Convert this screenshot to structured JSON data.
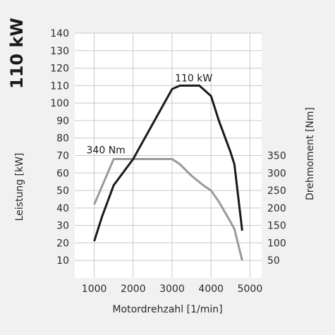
{
  "chart_data": {
    "type": "line",
    "title": "110 kW",
    "xlabel": "Motordrehzahl [1/min]",
    "ylabel_left": "Leistung [kW]",
    "ylabel_right": "Drehmoment [Nm]",
    "xlim": [
      500,
      5300
    ],
    "ylim_left": [
      0,
      140
    ],
    "ylim_right": [
      0,
      350
    ],
    "x_ticks": [
      1000,
      2000,
      3000,
      4000,
      5000
    ],
    "y_ticks_left": [
      10,
      20,
      30,
      40,
      50,
      60,
      70,
      80,
      90,
      100,
      110,
      120,
      130,
      140
    ],
    "y_ticks_right": [
      50,
      100,
      150,
      200,
      250,
      300,
      350
    ],
    "grid": true,
    "colors": {
      "power": "#1a1a1a",
      "torque": "#9a9a9a",
      "plot_bg": "#ffffff",
      "grid": "#c9c9c9"
    },
    "annotations": [
      {
        "text": "110 kW",
        "series": "power"
      },
      {
        "text": "340 Nm",
        "series": "torque"
      }
    ],
    "series": [
      {
        "axis": "left",
        "x": [
          1000,
          1200,
          1500,
          2000,
          2500,
          3000,
          3200,
          3500,
          3700,
          3800,
          4000,
          4200,
          4500,
          4600,
          4700,
          4800
        ],
        "y": [
          21,
          35,
          53,
          68,
          88,
          108,
          110,
          110,
          110,
          108,
          104,
          90,
          72,
          65,
          46,
          27
        ]
      },
      {
        "axis": "right",
        "x": [
          1000,
          1250,
          1500,
          2000,
          2500,
          3000,
          3200,
          3500,
          3800,
          4000,
          4200,
          4500,
          4600,
          4800
        ],
        "y": [
          210,
          275,
          340,
          340,
          340,
          340,
          325,
          292,
          265,
          250,
          218,
          160,
          140,
          50
        ]
      }
    ]
  }
}
